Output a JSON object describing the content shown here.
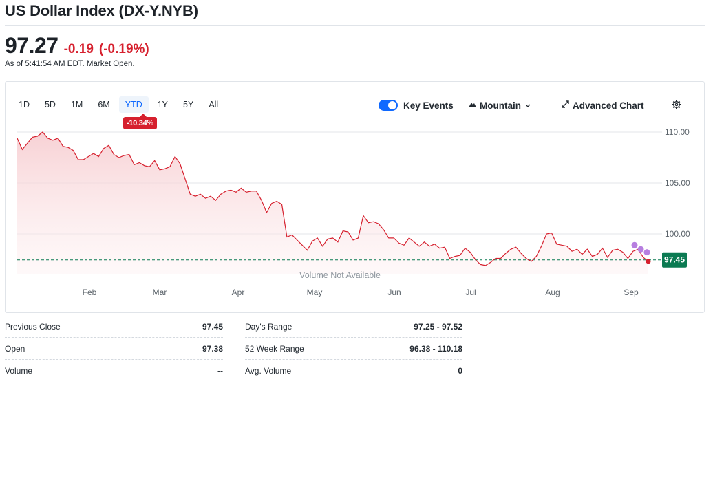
{
  "header": {
    "title": "US Dollar Index (DX-Y.NYB)",
    "price": "97.27",
    "change": "-0.19",
    "change_pct": "(-0.19%)",
    "as_of": "As of 5:41:54 AM EDT. Market Open."
  },
  "ranges": [
    "1D",
    "5D",
    "1M",
    "6M",
    "YTD",
    "1Y",
    "5Y",
    "All"
  ],
  "selected_range": "YTD",
  "ytd_change": "-10.34%",
  "toolbar": {
    "key_events_label": "Key Events",
    "key_events_on": true,
    "chart_type_label": "Mountain",
    "advanced_chart_label": "Advanced Chart",
    "settings_icon": "gear-icon"
  },
  "chart_data": {
    "type": "area",
    "title": "",
    "xlabel": "",
    "ylabel": "",
    "x_ticks": [
      "Feb",
      "Mar",
      "Apr",
      "May",
      "Jun",
      "Jul",
      "Aug",
      "Sep"
    ],
    "y_ticks": [
      "110.00",
      "105.00",
      "100.00"
    ],
    "ylim": [
      96.0,
      110.2
    ],
    "previous_close": 97.45,
    "last_label": "97.45",
    "volume_note": "Volume Not Available",
    "grid": true,
    "colors": {
      "line": "#d6202e",
      "fill": "#f8d3d6",
      "prev_close_line": "#0b7a52",
      "event_dot": "#b77fe0"
    },
    "series": [
      {
        "values": [
          109.4,
          108.3,
          108.9,
          109.5,
          109.6,
          110.0,
          109.4,
          109.2,
          109.4,
          108.6,
          108.5,
          108.2,
          107.3,
          107.3,
          107.6,
          107.9,
          107.6,
          108.4,
          108.7,
          107.8,
          107.5,
          107.7,
          107.8,
          106.8,
          107.0,
          106.7,
          106.6,
          107.2,
          106.3,
          106.4,
          106.6,
          107.6,
          106.9,
          105.4,
          103.9,
          103.7,
          103.9,
          103.5,
          103.7,
          103.3,
          103.9,
          104.2,
          104.3,
          104.1,
          104.5,
          104.1,
          104.2,
          104.2,
          103.3,
          102.1,
          103.0,
          103.2,
          102.9,
          99.7,
          99.9,
          99.4,
          98.9,
          98.4,
          99.3,
          99.6,
          98.8,
          99.5,
          99.6,
          99.2,
          100.3,
          100.2,
          99.4,
          99.6,
          101.8,
          101.1,
          101.2,
          101.0,
          100.4,
          99.6,
          99.6,
          99.1,
          98.9,
          99.6,
          99.2,
          98.8,
          99.2,
          98.8,
          99.0,
          98.6,
          98.7,
          97.6,
          97.8,
          97.9,
          98.6,
          98.2,
          97.5,
          97.0,
          96.9,
          97.2,
          97.6,
          97.6,
          98.1,
          98.5,
          98.7,
          98.1,
          97.6,
          97.3,
          97.8,
          98.8,
          100.0,
          100.1,
          99.0,
          98.9,
          98.8,
          98.3,
          98.5,
          98.0,
          98.5,
          97.8,
          98.0,
          98.6,
          97.7,
          98.4,
          98.5,
          98.2,
          97.6,
          98.3,
          98.5,
          97.7,
          97.3
        ]
      }
    ],
    "key_events": [
      {
        "label": "",
        "value": 98.9
      },
      {
        "label": "",
        "value": 98.5
      },
      {
        "label": "",
        "value": 98.2
      }
    ]
  },
  "stats_left": [
    {
      "label": "Previous Close",
      "value": "97.45"
    },
    {
      "label": "Open",
      "value": "97.38"
    },
    {
      "label": "Volume",
      "value": "--"
    }
  ],
  "stats_right": [
    {
      "label": "Day's Range",
      "value": "97.25 - 97.52"
    },
    {
      "label": "52 Week Range",
      "value": "96.38 - 110.18"
    },
    {
      "label": "Avg. Volume",
      "value": "0"
    }
  ]
}
